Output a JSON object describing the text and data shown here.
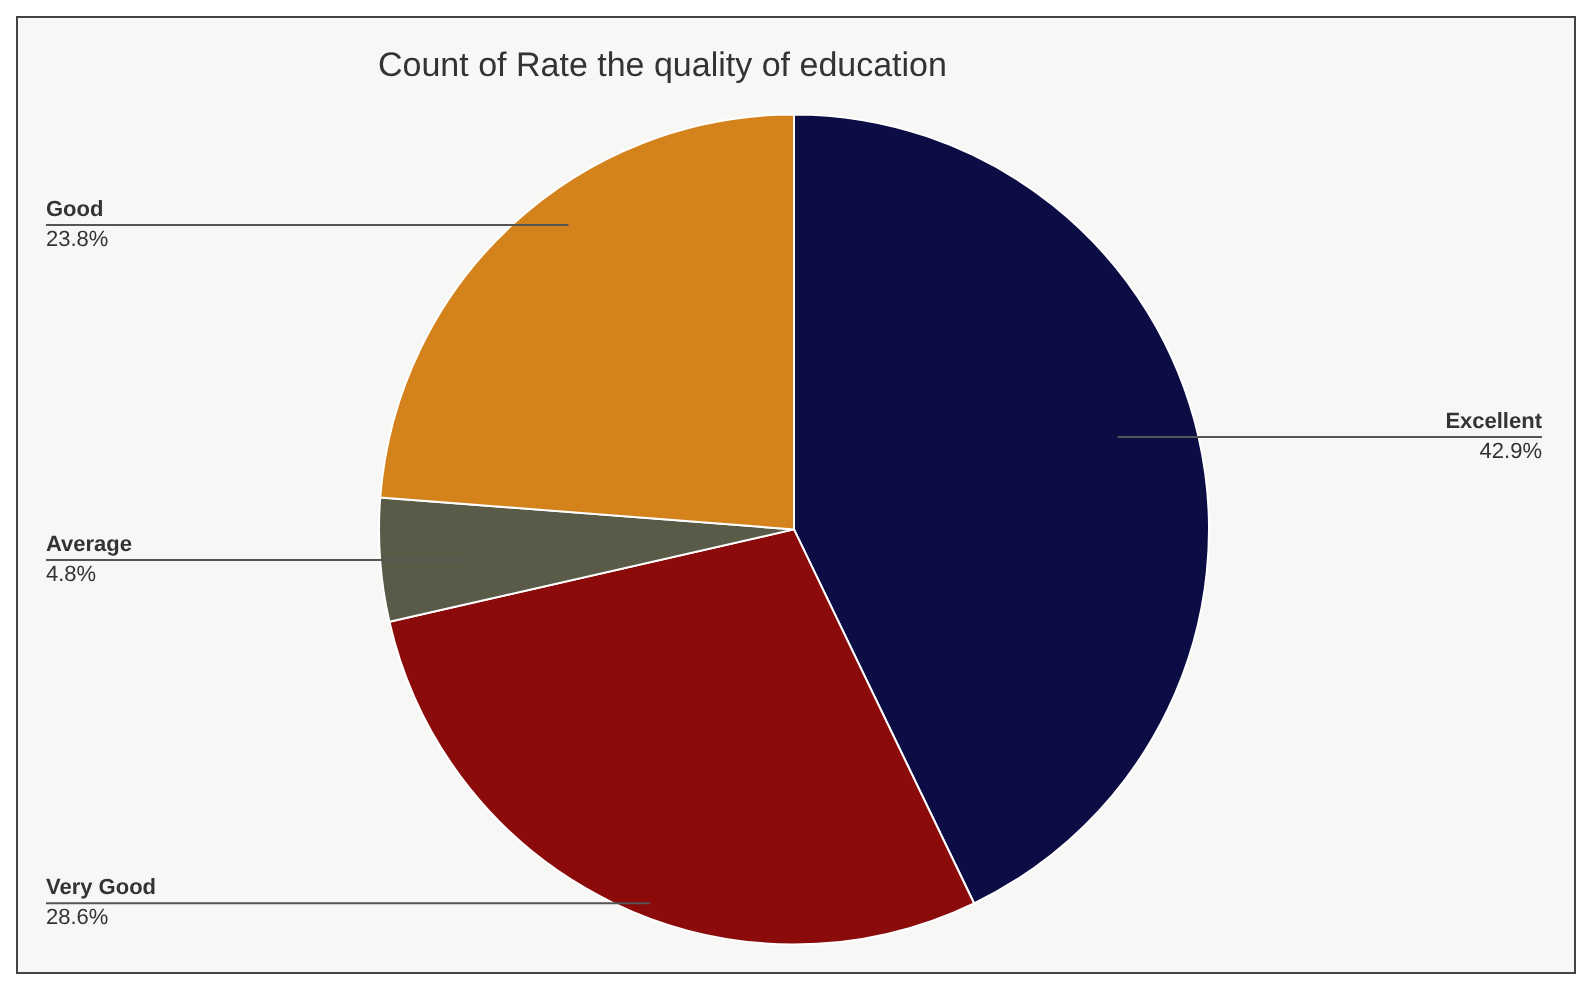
{
  "chart_data": {
    "type": "pie",
    "title": "Count of Rate the quality of education",
    "categories": [
      "Excellent",
      "Very Good",
      "Average",
      "Good"
    ],
    "values": [
      42.9,
      28.6,
      4.8,
      23.8
    ],
    "colors": [
      "#0d0d45",
      "#8b0a0a",
      "#5a5a48",
      "#d4831c"
    ],
    "value_labels": [
      "42.9%",
      "28.6%",
      "4.8%",
      "23.8%"
    ],
    "legend": false
  }
}
